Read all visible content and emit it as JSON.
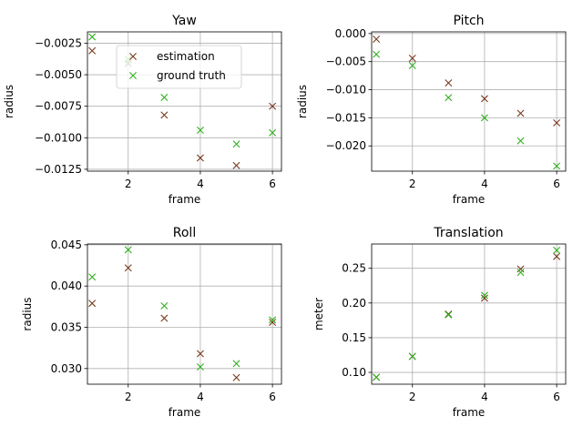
{
  "colors": {
    "estimation": "#7a3b1e",
    "ground_truth": "#2db21b",
    "grid": "#b0b0b0"
  },
  "chart_data": [
    {
      "type": "scatter",
      "title": "Yaw",
      "xlabel": "frame",
      "ylabel": "radius",
      "xlim": [
        0.87,
        6.25
      ],
      "ylim": [
        -0.01265,
        -0.0016
      ],
      "xticks": [
        2,
        4,
        6
      ],
      "xtick_labels": [
        "2",
        "4",
        "6"
      ],
      "yticks": [
        -0.0125,
        -0.01,
        -0.0075,
        -0.005,
        -0.0025
      ],
      "ytick_labels": [
        "−0.0125",
        "−0.0100",
        "−0.0075",
        "−0.0050",
        "−0.0025"
      ],
      "grid": true,
      "legend": {
        "position": "upper center",
        "entries": [
          "estimation",
          "ground truth"
        ]
      },
      "series": [
        {
          "name": "estimation",
          "marker": "x",
          "x": [
            1,
            2,
            3,
            4,
            5,
            6
          ],
          "y": [
            -0.0031,
            -0.0041,
            -0.0082,
            -0.0116,
            -0.0122,
            -0.0075
          ]
        },
        {
          "name": "ground truth",
          "marker": "x",
          "x": [
            1,
            2,
            3,
            4,
            5,
            6
          ],
          "y": [
            -0.002,
            -0.0038,
            -0.0068,
            -0.0094,
            -0.0105,
            -0.0096
          ]
        }
      ]
    },
    {
      "type": "scatter",
      "title": "Pitch",
      "xlabel": "frame",
      "ylabel": "radius",
      "xlim": [
        0.87,
        6.25
      ],
      "ylim": [
        -0.0245,
        0.0003
      ],
      "xticks": [
        2,
        4,
        6
      ],
      "xtick_labels": [
        "2",
        "4",
        "6"
      ],
      "yticks": [
        -0.02,
        -0.015,
        -0.01,
        -0.005,
        0.0
      ],
      "ytick_labels": [
        "−0.020",
        "−0.015",
        "−0.010",
        "−0.005",
        "0.000"
      ],
      "grid": true,
      "series": [
        {
          "name": "estimation",
          "marker": "x",
          "x": [
            1,
            2,
            3,
            4,
            5,
            6
          ],
          "y": [
            -0.001,
            -0.0044,
            -0.0088,
            -0.0116,
            -0.0142,
            -0.0159
          ]
        },
        {
          "name": "ground truth",
          "marker": "x",
          "x": [
            1,
            2,
            3,
            4,
            5,
            6
          ],
          "y": [
            -0.0037,
            -0.0057,
            -0.0114,
            -0.015,
            -0.0191,
            -0.0236
          ]
        }
      ]
    },
    {
      "type": "scatter",
      "title": "Roll",
      "xlabel": "frame",
      "ylabel": "radius",
      "xlim": [
        0.87,
        6.25
      ],
      "ylim": [
        0.0281,
        0.0451
      ],
      "xticks": [
        2,
        4,
        6
      ],
      "xtick_labels": [
        "2",
        "4",
        "6"
      ],
      "yticks": [
        0.03,
        0.035,
        0.04,
        0.045
      ],
      "ytick_labels": [
        "0.030",
        "0.035",
        "0.040",
        "0.045"
      ],
      "grid": true,
      "series": [
        {
          "name": "estimation",
          "marker": "x",
          "x": [
            1,
            2,
            3,
            4,
            5,
            6
          ],
          "y": [
            0.0379,
            0.0422,
            0.0361,
            0.0318,
            0.0289,
            0.0356
          ]
        },
        {
          "name": "ground truth",
          "marker": "x",
          "x": [
            1,
            2,
            3,
            4,
            5,
            6
          ],
          "y": [
            0.0411,
            0.0444,
            0.0376,
            0.0302,
            0.0306,
            0.0359
          ]
        }
      ]
    },
    {
      "type": "scatter",
      "title": "Translation",
      "xlabel": "frame",
      "ylabel": "meter",
      "xlim": [
        0.87,
        6.25
      ],
      "ylim": [
        0.083,
        0.285
      ],
      "xticks": [
        2,
        4,
        6
      ],
      "xtick_labels": [
        "2",
        "4",
        "6"
      ],
      "yticks": [
        0.1,
        0.15,
        0.2,
        0.25
      ],
      "ytick_labels": [
        "0.10",
        "0.15",
        "0.20",
        "0.25"
      ],
      "grid": true,
      "series": [
        {
          "name": "estimation",
          "marker": "x",
          "x": [
            1,
            2,
            3,
            4,
            5,
            6
          ],
          "y": [
            0.093,
            0.123,
            0.184,
            0.207,
            0.249,
            0.267
          ]
        },
        {
          "name": "ground truth",
          "marker": "x",
          "x": [
            1,
            2,
            3,
            4,
            5,
            6
          ],
          "y": [
            0.093,
            0.123,
            0.183,
            0.211,
            0.244,
            0.276
          ]
        }
      ]
    }
  ]
}
